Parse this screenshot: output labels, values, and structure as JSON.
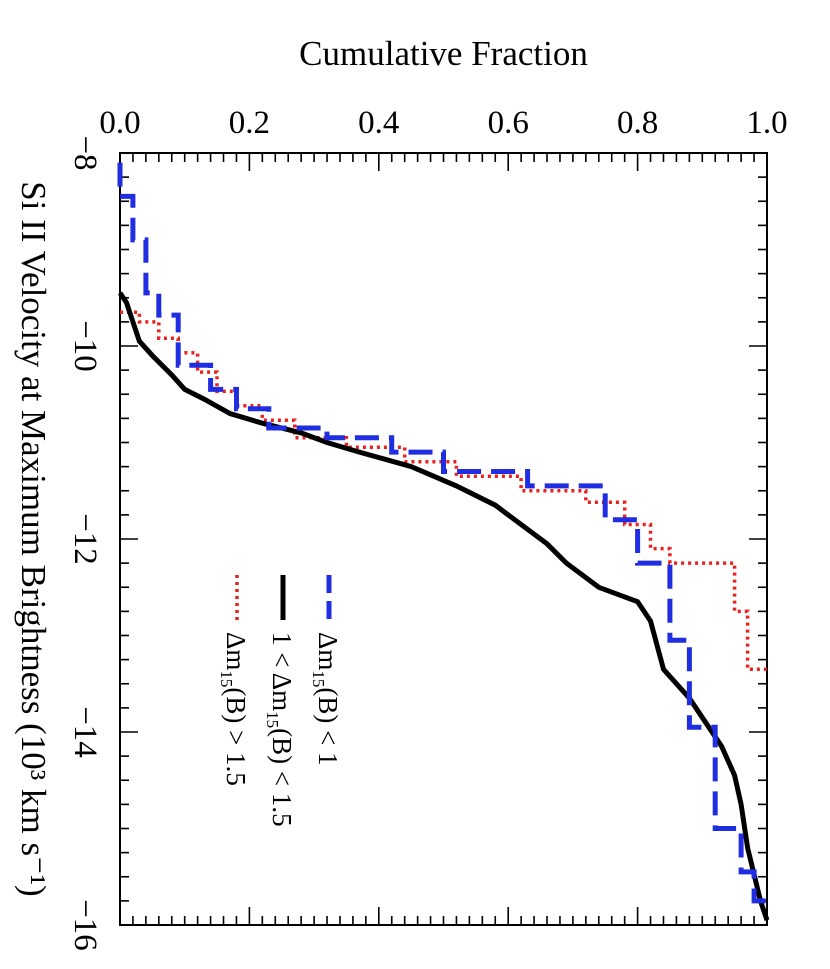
{
  "chart_data": {
    "type": "line",
    "title": "",
    "xlabel": "Si II Velocity at Maximum Brightness (10³ km s⁻¹)",
    "ylabel": "Cumulative Fraction",
    "xlim": [
      -8,
      -16
    ],
    "ylim": [
      0.0,
      1.0
    ],
    "x_ticks": [
      "−8",
      "−10",
      "−12",
      "−14",
      "−16"
    ],
    "y_ticks": [
      "0.0",
      "0.2",
      "0.4",
      "0.6",
      "0.8",
      "1.0"
    ],
    "grid": false,
    "legend_position": "top-right",
    "series": [
      {
        "name": "Δm15(B) > 1.5",
        "color": "#e8201e",
        "style": "dotted",
        "points": [
          [
            -9.65,
            0.0
          ],
          [
            -9.65,
            0.03
          ],
          [
            -9.75,
            0.03
          ],
          [
            -9.75,
            0.06
          ],
          [
            -9.92,
            0.06
          ],
          [
            -9.92,
            0.09
          ],
          [
            -10.07,
            0.09
          ],
          [
            -10.07,
            0.12
          ],
          [
            -10.27,
            0.12
          ],
          [
            -10.27,
            0.15
          ],
          [
            -10.47,
            0.15
          ],
          [
            -10.47,
            0.18
          ],
          [
            -10.62,
            0.18
          ],
          [
            -10.62,
            0.22
          ],
          [
            -10.77,
            0.22
          ],
          [
            -10.77,
            0.27
          ],
          [
            -10.95,
            0.27
          ],
          [
            -10.95,
            0.35
          ],
          [
            -11.05,
            0.35
          ],
          [
            -11.05,
            0.44
          ],
          [
            -11.2,
            0.44
          ],
          [
            -11.2,
            0.52
          ],
          [
            -11.35,
            0.52
          ],
          [
            -11.35,
            0.62
          ],
          [
            -11.5,
            0.62
          ],
          [
            -11.5,
            0.72
          ],
          [
            -11.62,
            0.72
          ],
          [
            -11.62,
            0.78
          ],
          [
            -11.85,
            0.78
          ],
          [
            -11.85,
            0.82
          ],
          [
            -12.1,
            0.82
          ],
          [
            -12.1,
            0.85
          ],
          [
            -12.25,
            0.85
          ],
          [
            -12.25,
            0.95
          ],
          [
            -12.75,
            0.95
          ],
          [
            -12.75,
            0.97
          ],
          [
            -13.35,
            0.97
          ],
          [
            -13.35,
            1.0
          ]
        ]
      },
      {
        "name": "1 < Δm15(B) < 1.5",
        "color": "#000000",
        "style": "solid",
        "points": [
          [
            -9.45,
            0.0
          ],
          [
            -9.55,
            0.01
          ],
          [
            -9.75,
            0.02
          ],
          [
            -9.95,
            0.03
          ],
          [
            -10.1,
            0.05
          ],
          [
            -10.3,
            0.08
          ],
          [
            -10.45,
            0.1
          ],
          [
            -10.55,
            0.13
          ],
          [
            -10.7,
            0.17
          ],
          [
            -10.8,
            0.22
          ],
          [
            -10.9,
            0.28
          ],
          [
            -11.0,
            0.32
          ],
          [
            -11.1,
            0.37
          ],
          [
            -11.25,
            0.45
          ],
          [
            -11.45,
            0.52
          ],
          [
            -11.65,
            0.58
          ],
          [
            -11.85,
            0.62
          ],
          [
            -12.05,
            0.66
          ],
          [
            -12.25,
            0.69
          ],
          [
            -12.5,
            0.74
          ],
          [
            -12.65,
            0.8
          ],
          [
            -12.85,
            0.82
          ],
          [
            -13.1,
            0.83
          ],
          [
            -13.35,
            0.84
          ],
          [
            -13.65,
            0.88
          ],
          [
            -13.95,
            0.91
          ],
          [
            -14.15,
            0.93
          ],
          [
            -14.45,
            0.95
          ],
          [
            -14.75,
            0.96
          ],
          [
            -15.2,
            0.97
          ],
          [
            -15.75,
            0.99
          ],
          [
            -15.95,
            1.0
          ]
        ]
      },
      {
        "name": "Δm15(B) < 1",
        "color": "#1f2ee0",
        "style": "dashed",
        "points": [
          [
            -8.1,
            0.0
          ],
          [
            -8.45,
            0.0
          ],
          [
            -8.45,
            0.02
          ],
          [
            -8.9,
            0.02
          ],
          [
            -8.9,
            0.04
          ],
          [
            -9.45,
            0.04
          ],
          [
            -9.45,
            0.06
          ],
          [
            -9.68,
            0.06
          ],
          [
            -9.68,
            0.09
          ],
          [
            -10.2,
            0.09
          ],
          [
            -10.2,
            0.14
          ],
          [
            -10.45,
            0.14
          ],
          [
            -10.45,
            0.18
          ],
          [
            -10.65,
            0.18
          ],
          [
            -10.65,
            0.23
          ],
          [
            -10.85,
            0.23
          ],
          [
            -10.85,
            0.32
          ],
          [
            -10.95,
            0.32
          ],
          [
            -10.95,
            0.42
          ],
          [
            -11.1,
            0.42
          ],
          [
            -11.1,
            0.5
          ],
          [
            -11.3,
            0.5
          ],
          [
            -11.3,
            0.63
          ],
          [
            -11.45,
            0.63
          ],
          [
            -11.45,
            0.75
          ],
          [
            -11.8,
            0.75
          ],
          [
            -11.8,
            0.8
          ],
          [
            -12.25,
            0.8
          ],
          [
            -12.25,
            0.85
          ],
          [
            -13.05,
            0.85
          ],
          [
            -13.05,
            0.88
          ],
          [
            -13.95,
            0.88
          ],
          [
            -13.95,
            0.92
          ],
          [
            -15.0,
            0.92
          ],
          [
            -15.0,
            0.96
          ],
          [
            -15.45,
            0.96
          ],
          [
            -15.45,
            0.98
          ],
          [
            -15.75,
            0.98
          ],
          [
            -15.75,
            1.0
          ]
        ]
      }
    ],
    "legend_entries": [
      {
        "label_prefix": "Δm",
        "label_sub": "15",
        "label_suffix": "(B) > 1.5"
      },
      {
        "label_prefix": "1 < Δm",
        "label_sub": "15",
        "label_suffix": "(B) < 1.5"
      },
      {
        "label_prefix": "Δm",
        "label_sub": "15",
        "label_suffix": "(B) < 1"
      }
    ]
  }
}
